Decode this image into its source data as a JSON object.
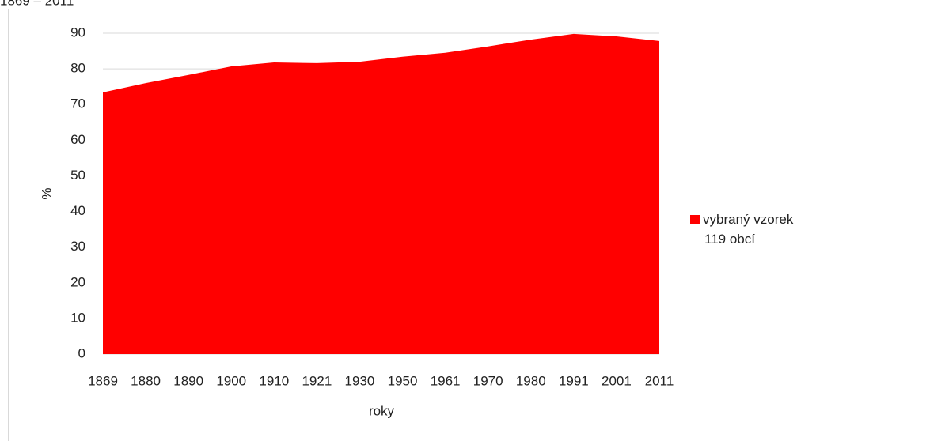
{
  "chart_data": {
    "type": "area",
    "title": "1869 – 2011",
    "x_label": "roky",
    "y_label": "%",
    "categories": [
      "1869",
      "1880",
      "1890",
      "1900",
      "1910",
      "1921",
      "1930",
      "1950",
      "1961",
      "1970",
      "1980",
      "1991",
      "2001",
      "2011"
    ],
    "series": [
      {
        "name": "vybraný vzorek 119 obcí",
        "color": "#ff0000",
        "values": [
          73.4,
          76,
          78.3,
          80.7,
          81.8,
          81.6,
          82,
          83.4,
          84.5,
          86.3,
          88.2,
          89.8,
          89.1,
          87.8
        ]
      }
    ],
    "ylim": [
      0,
      90
    ],
    "yticks": [
      0,
      10,
      20,
      30,
      40,
      50,
      60,
      70,
      80,
      90
    ],
    "grid": true,
    "legend": "right"
  }
}
